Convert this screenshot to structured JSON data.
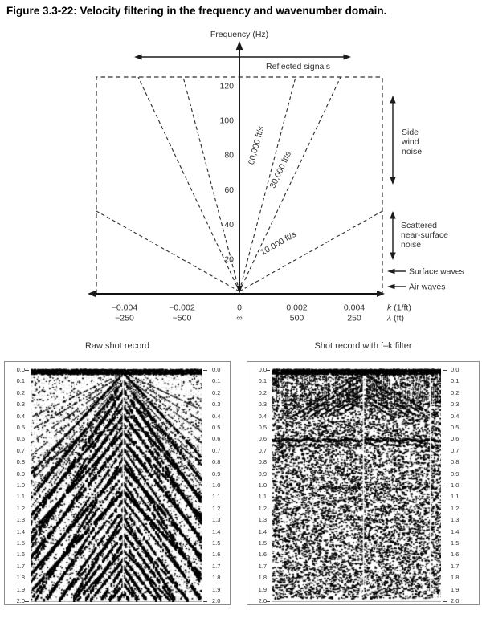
{
  "figure_title": "Figure 3.3-22: Velocity filtering in the frequency and wavenumber domain.",
  "fk_diagram": {
    "freq_axis_label": "Frequency (Hz)",
    "freq_ticks": [
      "120",
      "100",
      "80",
      "60",
      "40",
      "20"
    ],
    "reflected_signals_label": "Reflected signals",
    "velocity_labels": [
      "60,000 ft/s",
      "30,000 ft/s",
      "10,000 ft/s"
    ],
    "k_axis": {
      "ticks": [
        "−0.004",
        "−0.002",
        "0",
        "0.002",
        "0.004"
      ],
      "label_italic": "k",
      "label_rest": "(1/ft)"
    },
    "lambda_axis": {
      "ticks": [
        "−250",
        "−500",
        "∞",
        "500",
        "250"
      ],
      "label_italic": "λ",
      "label_rest": "(ft)"
    },
    "annotations": {
      "side_wind": [
        "Side",
        "wind",
        "noise"
      ],
      "scattered": [
        "Scattered",
        "near-surface",
        "noise"
      ],
      "surface_waves": "Surface waves",
      "air_waves": "Air waves"
    }
  },
  "time_ticks": [
    "0.0",
    "0.1",
    "0.2",
    "0.3",
    "0.4",
    "0.5",
    "0.6",
    "0.7",
    "0.8",
    "0.9",
    "1.0",
    "1.1",
    "1.2",
    "1.3",
    "1.4",
    "1.5",
    "1.6",
    "1.7",
    "1.8",
    "1.9",
    "2.0"
  ],
  "panels": [
    {
      "title": "Raw shot record"
    },
    {
      "title": "Shot record with f–k filter"
    }
  ],
  "chart_data": {
    "type": "diagram",
    "title": "Velocity filtering in the frequency and wavenumber domain",
    "fk_plot": {
      "x_axis": {
        "label": "k (1/ft)",
        "ticks": [
          -0.004,
          -0.002,
          0,
          0.002,
          0.004
        ],
        "range": [
          -0.005,
          0.005
        ]
      },
      "wavelength_axis": {
        "label": "λ (ft)",
        "tick_values": [
          "−250",
          "−500",
          "∞",
          "500",
          "250"
        ]
      },
      "y_axis": {
        "label": "Frequency (Hz)",
        "ticks": [
          20,
          40,
          60,
          80,
          100,
          120
        ],
        "range": [
          0,
          126
        ]
      },
      "velocity_lines_ft_per_s": [
        60000,
        30000,
        10000,
        -10000,
        -30000,
        -60000
      ],
      "zones": [
        {
          "label": "Reflected signals",
          "location": "fan around k = 0 at all frequencies"
        },
        {
          "label": "Side wind noise",
          "location": "high frequency, high wavenumber (right edge, ~65–125 Hz)"
        },
        {
          "label": "Scattered near-surface noise",
          "location": "right edge, ~20–48 Hz, below 10,000 ft/s line"
        },
        {
          "label": "Surface waves",
          "location": "right edge near ~12 Hz"
        },
        {
          "label": "Air waves",
          "location": "right edge near ~4 Hz"
        }
      ],
      "grid": false,
      "boundary": "dashed rectangle from k=−0.005 to 0.005, f=0 to ~126 Hz"
    },
    "panels": [
      {
        "title": "Raw shot record",
        "type": "seismic_shot_record_image",
        "time_axis_s": [
          0.0,
          2.0
        ],
        "tick_step_s": 0.1,
        "content": "dense wiggle-trace shot gather with strong linear dipping events (ground roll / direct arrivals) fanning from source at top center, hyperbolic reflections near top"
      },
      {
        "title": "Shot record with f–k filter",
        "type": "seismic_shot_record_image",
        "time_axis_s": [
          0.0,
          2.0
        ],
        "tick_step_s": 0.1,
        "content": "same gather after f–k velocity filtering: coherent dipping noise removed, incoherent speckle remains, horizontal reflection preserved near 0.6 s"
      }
    ]
  }
}
